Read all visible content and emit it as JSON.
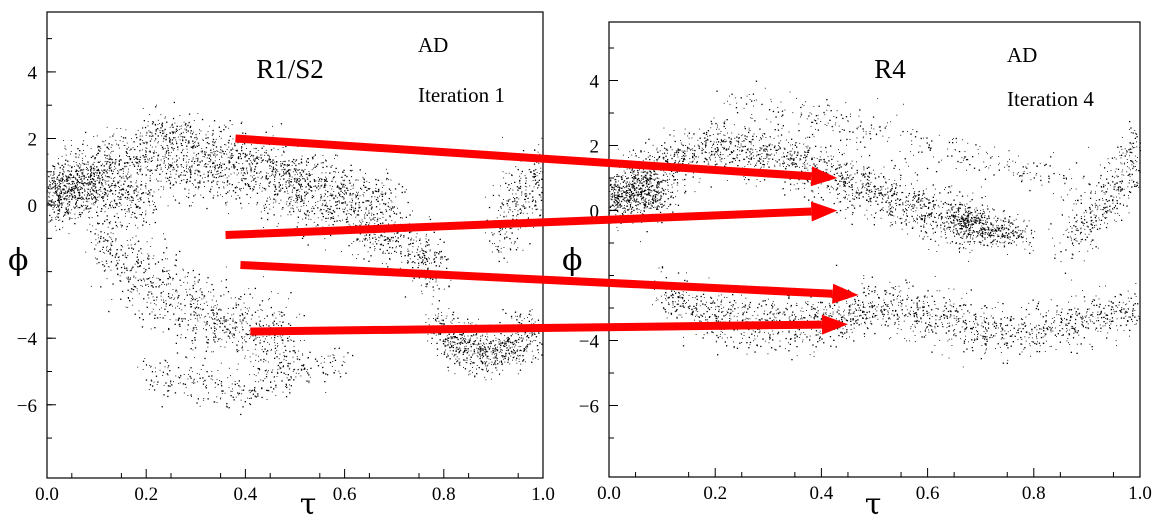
{
  "chart_data": [
    {
      "type": "scatter",
      "title": "R1/S2",
      "annotation_1": "AD",
      "annotation_2": "Iteration 1",
      "xlabel": "τ",
      "ylabel": "ϕ",
      "xlim": [
        0.0,
        1.0
      ],
      "ylim": [
        -8.2,
        5.8
      ],
      "x_ticks": [
        "0.0",
        "0.2",
        "0.4",
        "0.6",
        "0.8",
        "1.0"
      ],
      "y_ticks": [
        "4",
        "2",
        "0",
        "−4",
        "−6"
      ],
      "y_tick_values": [
        4,
        2,
        0,
        -4,
        -6
      ],
      "x_tick_values": [
        0.0,
        0.2,
        0.4,
        0.6,
        0.8,
        1.0
      ],
      "grid": false,
      "point_color": "#000000",
      "clusters": [
        {
          "x": [
            0.0,
            0.1,
            0.2,
            0.3,
            0.4,
            0.5,
            0.6,
            0.7,
            0.8
          ],
          "y": [
            0.4,
            1.2,
            1.4,
            1.0,
            0.9,
            0.4,
            -0.2,
            -1.0,
            -2.0
          ],
          "spread": 0.8,
          "n": 1800
        },
        {
          "x": [
            0.0,
            0.05,
            0.1,
            0.2
          ],
          "y": [
            0.2,
            0.5,
            0.6,
            0.0
          ],
          "spread": 0.7,
          "n": 700
        },
        {
          "x": [
            0.1,
            0.2,
            0.3,
            0.4,
            0.5
          ],
          "y": [
            -1.0,
            -2.2,
            -3.2,
            -3.8,
            -4.2
          ],
          "spread": 1.0,
          "n": 900
        },
        {
          "x": [
            0.2,
            0.3,
            0.4,
            0.5,
            0.6,
            0.7
          ],
          "y": [
            2.2,
            2.0,
            1.5,
            1.0,
            0.6,
            0.2
          ],
          "spread": 0.6,
          "n": 700
        },
        {
          "x": [
            0.78,
            0.82,
            0.86,
            0.9,
            0.94,
            0.98
          ],
          "y": [
            -3.6,
            -4.0,
            -4.3,
            -4.4,
            -4.2,
            -3.8
          ],
          "spread": 0.6,
          "n": 700
        },
        {
          "x": [
            0.9,
            0.94,
            0.97,
            1.0
          ],
          "y": [
            -1.0,
            0.0,
            0.5,
            0.8
          ],
          "spread": 0.9,
          "n": 300
        },
        {
          "x": [
            0.2,
            0.3,
            0.4,
            0.5,
            0.6
          ],
          "y": [
            -5.0,
            -5.4,
            -5.6,
            -5.0,
            -4.6
          ],
          "spread": 0.5,
          "n": 300
        }
      ]
    },
    {
      "type": "scatter",
      "title": "R4",
      "annotation_1": "AD",
      "annotation_2": "Iteration 4",
      "xlabel": "τ",
      "ylabel": "ϕ",
      "xlim": [
        0.0,
        1.0
      ],
      "ylim": [
        -8.2,
        5.8
      ],
      "x_ticks": [
        "0.0",
        "0.2",
        "0.4",
        "0.6",
        "0.8",
        "1.0"
      ],
      "y_ticks": [
        "4",
        "2",
        "0",
        "−4",
        "−6"
      ],
      "y_tick_values": [
        4,
        2,
        0,
        -4,
        -6
      ],
      "x_tick_values": [
        0.0,
        0.2,
        0.4,
        0.6,
        0.8,
        1.0
      ],
      "grid": false,
      "point_color": "#000000",
      "clusters": [
        {
          "x": [
            0.0,
            0.1,
            0.2,
            0.3,
            0.4,
            0.5,
            0.6,
            0.7
          ],
          "y": [
            0.4,
            1.4,
            2.0,
            1.8,
            1.2,
            0.6,
            0.0,
            -0.6
          ],
          "spread": 0.7,
          "n": 1800
        },
        {
          "x": [
            0.0,
            0.05,
            0.1
          ],
          "y": [
            0.2,
            0.6,
            0.4
          ],
          "spread": 0.6,
          "n": 500
        },
        {
          "x": [
            0.1,
            0.2,
            0.3,
            0.4,
            0.5,
            0.6,
            0.7
          ],
          "y": [
            -2.6,
            -3.2,
            -3.5,
            -3.4,
            -3.0,
            -3.2,
            -3.6
          ],
          "spread": 0.7,
          "n": 1200
        },
        {
          "x": [
            0.7,
            0.8,
            0.9,
            1.0
          ],
          "y": [
            -3.8,
            -3.6,
            -3.4,
            -3.0
          ],
          "spread": 0.6,
          "n": 500
        },
        {
          "x": [
            0.65,
            0.72,
            0.78
          ],
          "y": [
            -0.3,
            -0.5,
            -0.8
          ],
          "spread": 0.4,
          "n": 400
        },
        {
          "x": [
            0.85,
            0.92,
            0.97,
            1.0
          ],
          "y": [
            -1.0,
            0.0,
            1.0,
            2.0
          ],
          "spread": 0.8,
          "n": 400
        },
        {
          "x": [
            0.2,
            0.4,
            0.5,
            0.7,
            0.9
          ],
          "y": [
            3.4,
            2.9,
            2.4,
            1.6,
            0.8
          ],
          "spread": 0.5,
          "n": 300
        }
      ]
    }
  ],
  "arrows": {
    "color": "#ff0000",
    "items": [
      {
        "from": {
          "x": 0.38,
          "y": 2.0
        },
        "to": {
          "x": 0.43,
          "y": 1.0
        }
      },
      {
        "from": {
          "x": 0.36,
          "y": -0.9
        },
        "to": {
          "x": 0.43,
          "y": 0.0
        }
      },
      {
        "from": {
          "x": 0.39,
          "y": -1.8
        },
        "to": {
          "x": 0.47,
          "y": -2.6
        }
      },
      {
        "from": {
          "x": 0.41,
          "y": -3.8
        },
        "to": {
          "x": 0.45,
          "y": -3.5
        }
      }
    ]
  }
}
